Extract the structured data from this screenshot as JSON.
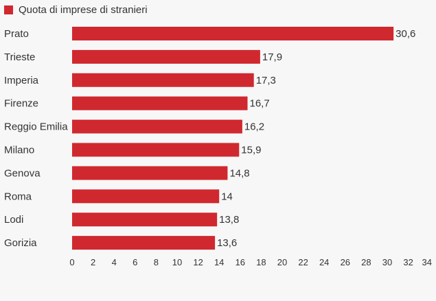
{
  "legend": {
    "label": "Quota di imprese di stranieri",
    "color": "#d0282f"
  },
  "chart_data": {
    "type": "bar",
    "orientation": "horizontal",
    "categories": [
      "Prato",
      "Trieste",
      "Imperia",
      "Firenze",
      "Reggio Emilia",
      "Milano",
      "Genova",
      "Roma",
      "Lodi",
      "Gorizia"
    ],
    "series": [
      {
        "name": "Quota di imprese di stranieri",
        "values": [
          30.6,
          17.9,
          17.3,
          16.7,
          16.2,
          15.9,
          14.8,
          14,
          13.8,
          13.6
        ],
        "value_labels": [
          "30,6",
          "17,9",
          "17,3",
          "16,7",
          "16,2",
          "15,9",
          "14,8",
          "14",
          "13,8",
          "13,6"
        ]
      }
    ],
    "xticks": [
      "0",
      "2",
      "4",
      "6",
      "8",
      "10",
      "12",
      "14",
      "16",
      "18",
      "20",
      "22",
      "24",
      "26",
      "28",
      "30",
      "32",
      "34"
    ],
    "xlim": [
      0,
      34
    ],
    "grid": false,
    "legend_position": "top-left",
    "title": "",
    "xlabel": "",
    "ylabel": ""
  }
}
